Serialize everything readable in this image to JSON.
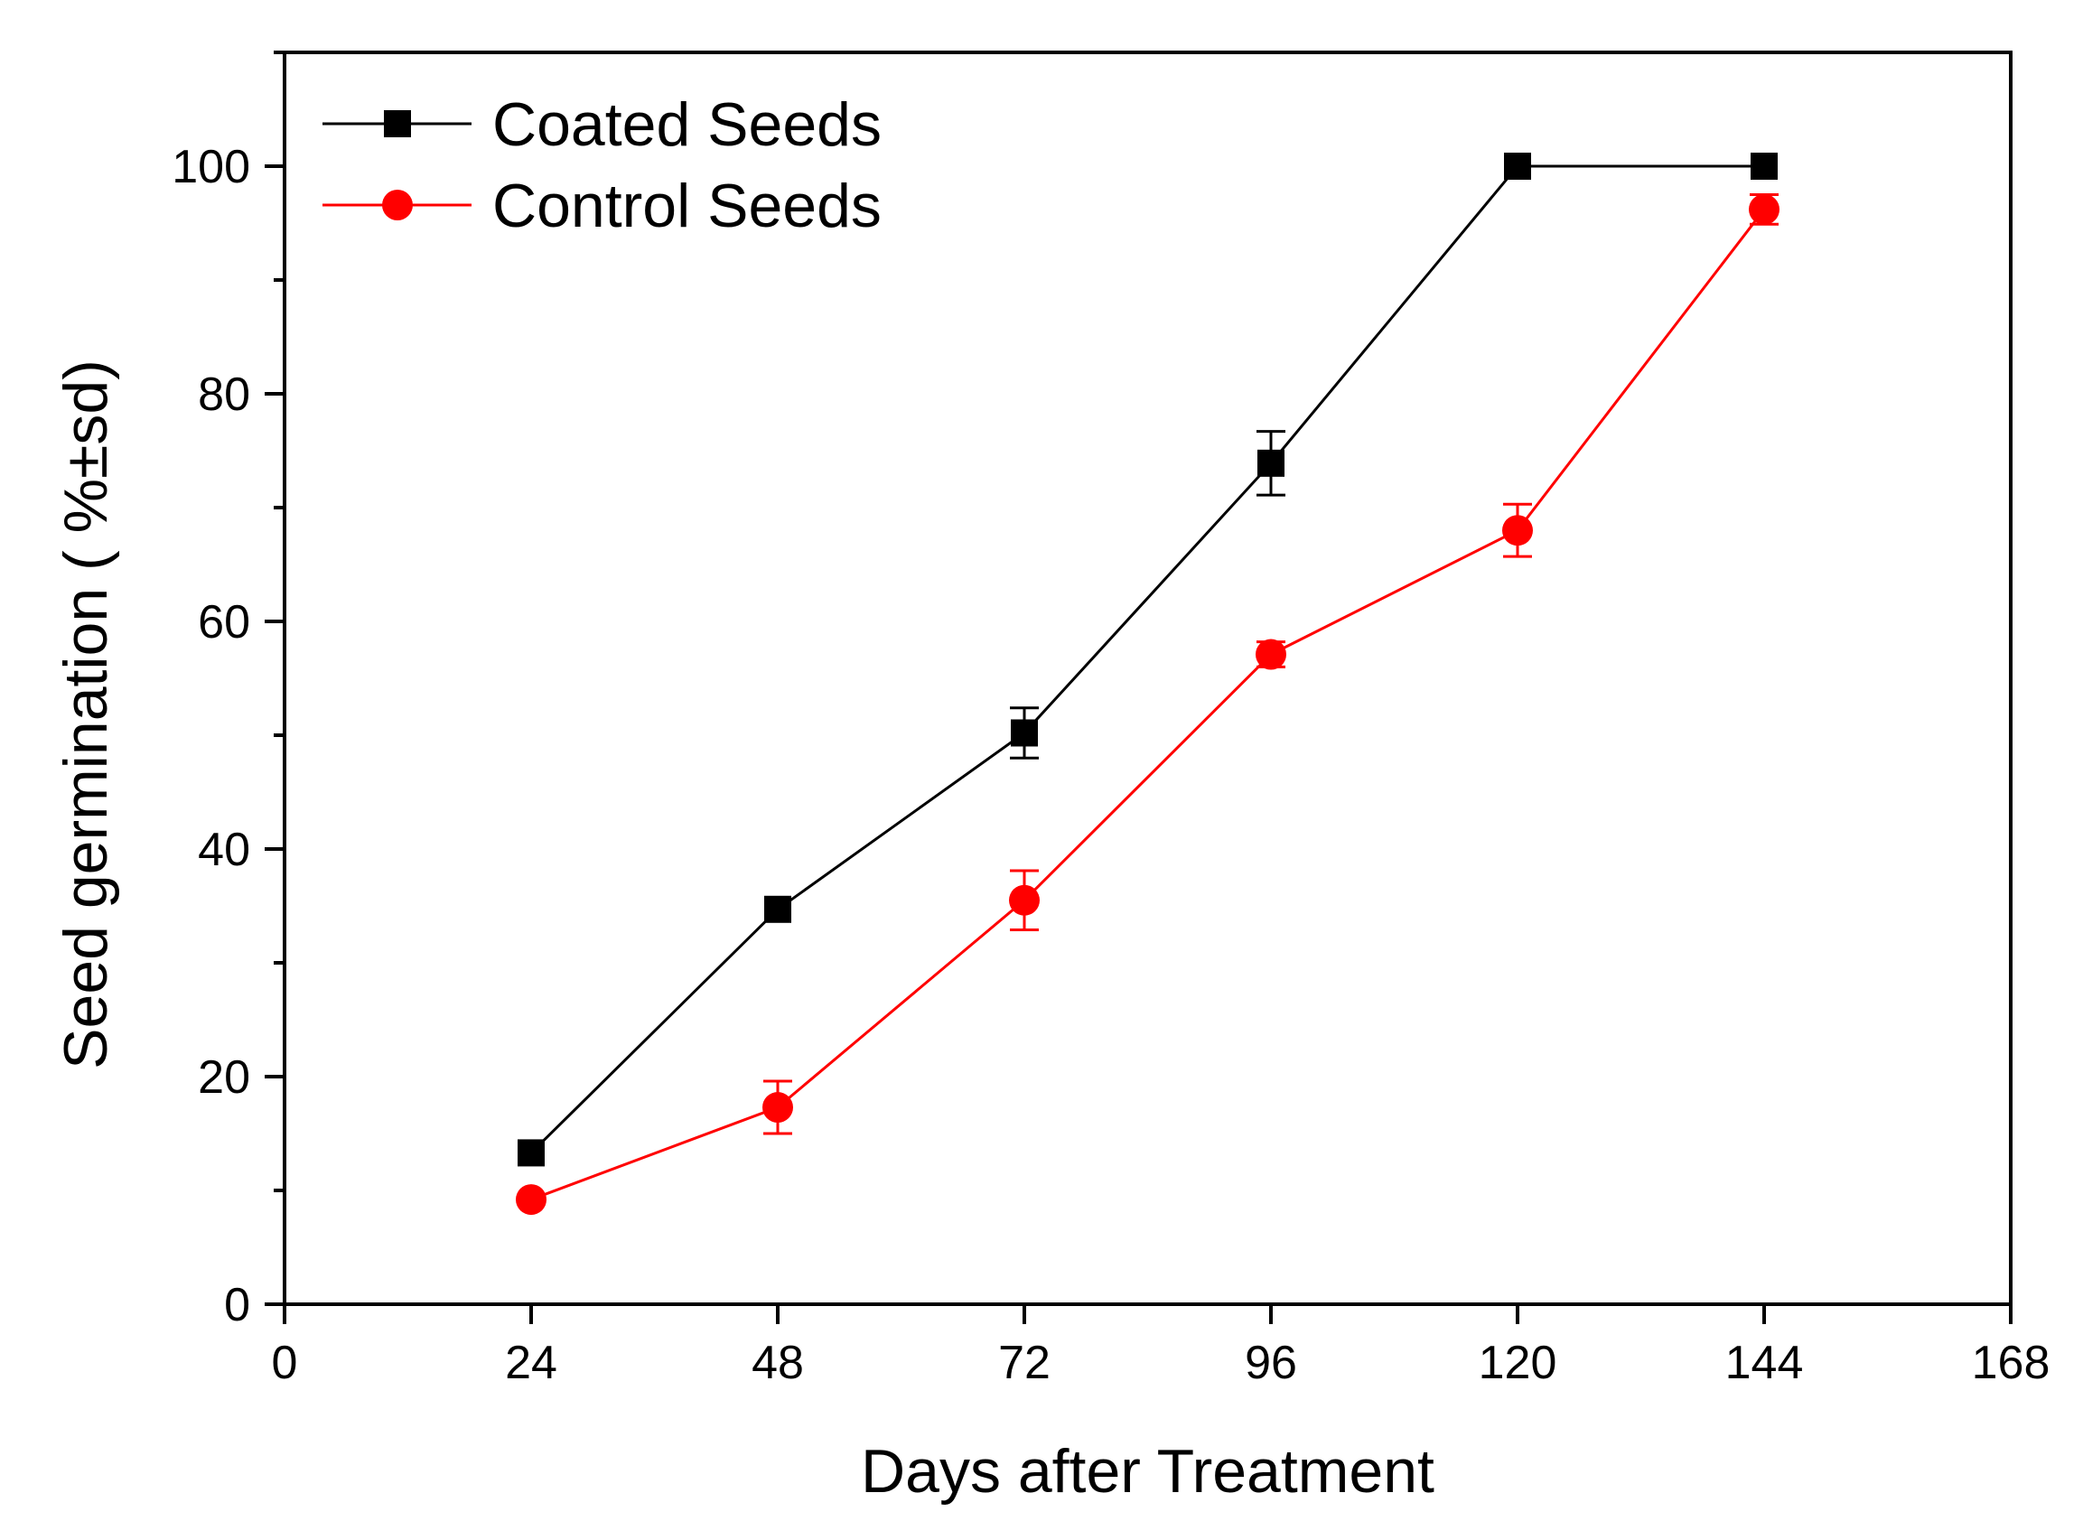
{
  "chart_data": {
    "type": "line",
    "title": "",
    "xlabel": "Days after Treatment",
    "ylabel": "Seed germination ( %±sd)",
    "xlim": [
      0,
      168
    ],
    "ylim": [
      0,
      110
    ],
    "xticks": [
      0,
      24,
      48,
      72,
      96,
      120,
      144,
      168
    ],
    "xtick_labels": [
      "0",
      "24",
      "48",
      "72",
      "96",
      "120",
      "144",
      "168"
    ],
    "yticks": [
      0,
      20,
      40,
      60,
      80,
      100
    ],
    "ytick_labels": [
      "0",
      "20",
      "40",
      "60",
      "80",
      "100"
    ],
    "y_minor_ticks": [
      10,
      30,
      50,
      70,
      90,
      110
    ],
    "grid": false,
    "legend_position": "top-left",
    "series": [
      {
        "name": "Coated Seeds",
        "color": "#000000",
        "marker": "square",
        "x": [
          24,
          48,
          72,
          96,
          120,
          144
        ],
        "y": [
          13.3,
          34.7,
          50.2,
          73.9,
          100,
          100
        ],
        "err": [
          0,
          0,
          2.2,
          2.8,
          0,
          0
        ]
      },
      {
        "name": "Control Seeds",
        "color": "#ff0000",
        "marker": "circle",
        "x": [
          24,
          48,
          72,
          96,
          120,
          144
        ],
        "y": [
          9.2,
          17.3,
          35.5,
          57.1,
          68.0,
          96.2
        ],
        "err": [
          0,
          2.3,
          2.6,
          1.1,
          2.3,
          1.3
        ]
      }
    ]
  }
}
